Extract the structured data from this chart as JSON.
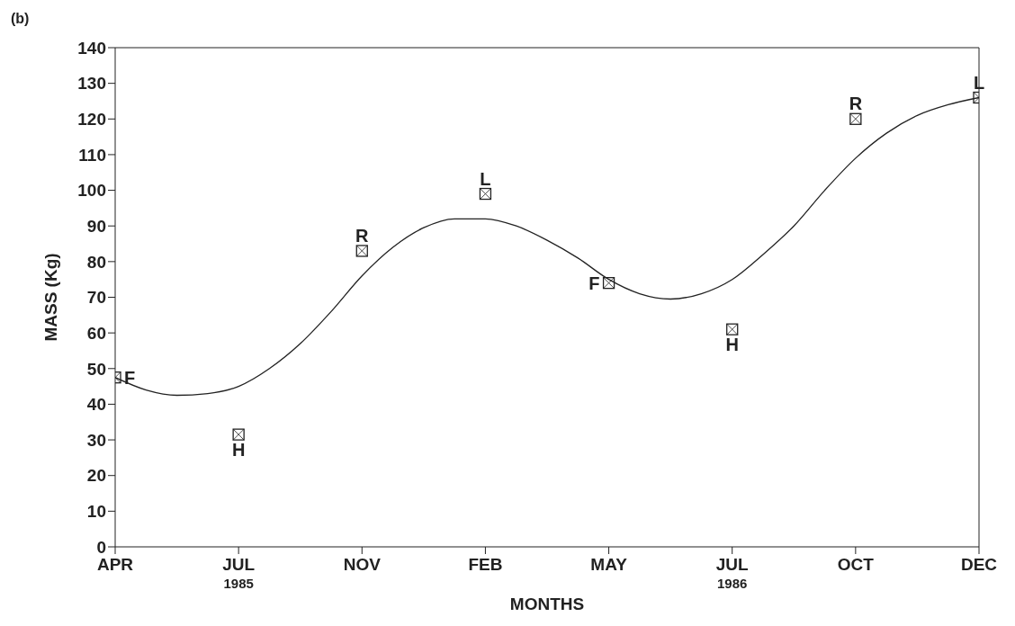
{
  "chart_data": {
    "type": "scatter",
    "title": "(b)",
    "xlabel": "MONTHS",
    "ylabel": "MASS (Kg)",
    "categories": [
      "APR",
      null,
      null,
      null,
      "JUL 1985",
      null,
      null,
      null,
      "NOV",
      null,
      null,
      null,
      "FEB",
      null,
      null,
      null,
      "MAY",
      null,
      null,
      null,
      "JUL 1986",
      null,
      null,
      null,
      "OCT",
      null,
      null,
      null,
      "DEC"
    ],
    "ylim": [
      0,
      140
    ],
    "yticks": [
      0,
      10,
      20,
      30,
      40,
      50,
      60,
      70,
      80,
      90,
      100,
      110,
      120,
      130,
      140
    ],
    "series": [
      {
        "color": "#222222",
        "marker": "square",
        "values": [
          47.5,
          null,
          null,
          null,
          31.5,
          null,
          null,
          null,
          83,
          null,
          null,
          null,
          99,
          null,
          null,
          null,
          74,
          null,
          null,
          null,
          61,
          null,
          null,
          null,
          120,
          null,
          null,
          null,
          126
        ]
      },
      {
        "type": "line",
        "color": "#222222",
        "marker": "none",
        "line_style": "solid",
        "values": [
          47.5,
          44,
          42.5,
          43,
          45,
          50,
          57,
          66,
          76,
          84,
          89.5,
          92,
          92,
          90,
          86,
          81,
          75,
          71,
          69.5,
          71,
          75,
          82,
          90,
          100,
          109,
          116,
          121,
          124,
          126
        ]
      }
    ],
    "annotations": [
      {
        "text": "F",
        "x": "APR",
        "y": 47.5
      },
      {
        "text": "H",
        "x": "JUL 1985",
        "y": 31.5
      },
      {
        "text": "R",
        "x": "NOV",
        "y": 83
      },
      {
        "text": "L",
        "x": "FEB",
        "y": 99
      },
      {
        "text": "F",
        "x": "MAY",
        "y": 74
      },
      {
        "text": "H",
        "x": "JUL 1986",
        "y": 61
      },
      {
        "text": "R",
        "x": "OCT",
        "y": 120
      },
      {
        "text": "L",
        "x": "DEC",
        "y": 126
      }
    ]
  }
}
